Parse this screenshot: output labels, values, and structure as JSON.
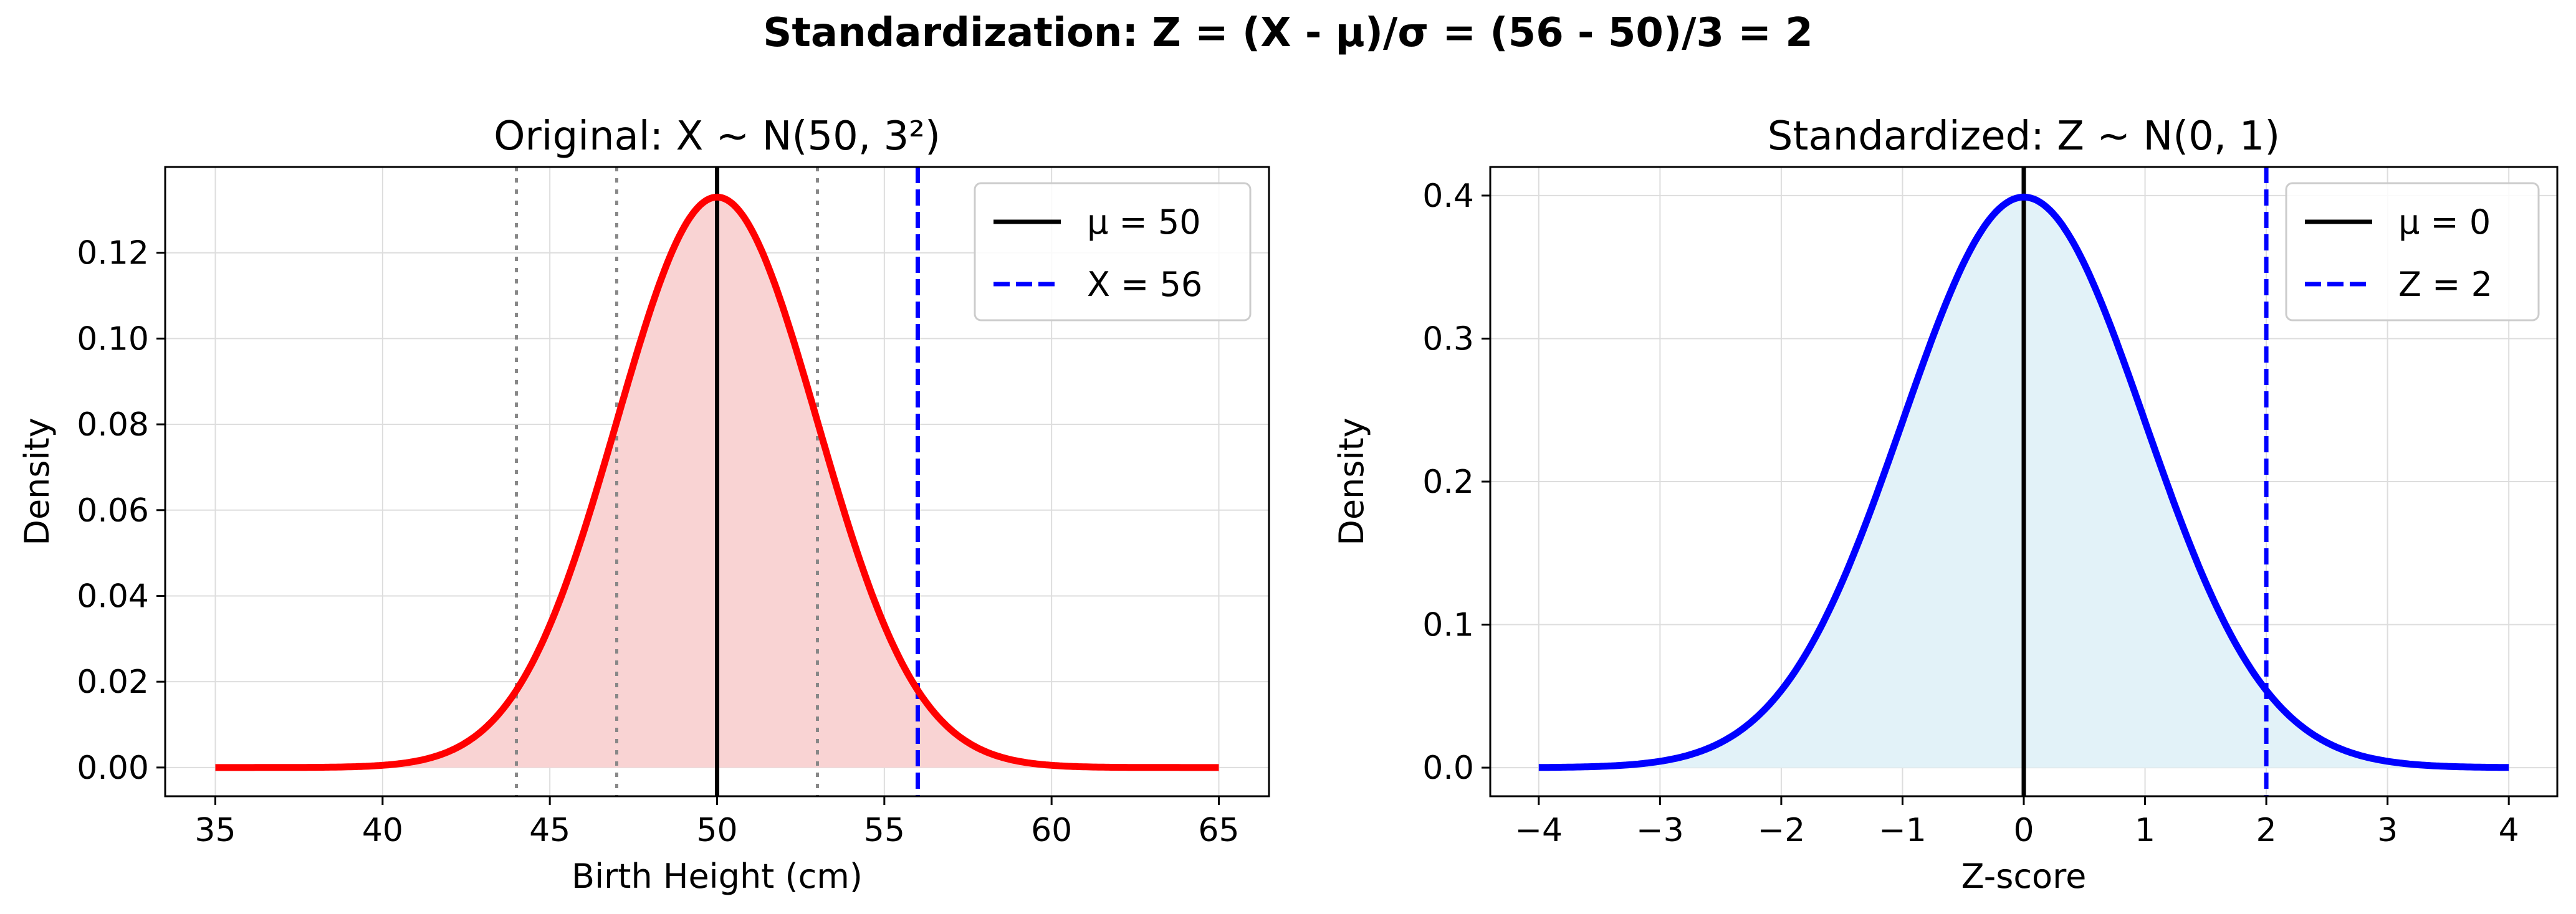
{
  "suptitle": "Standardization: Z = (X - μ)/σ = (56 - 50)/3 = 2",
  "chart_data": [
    {
      "type": "line",
      "title": "Original: X ~ N(50, 3²)",
      "xlabel": "Birth Height (cm)",
      "ylabel": "Density",
      "xlim": [
        33.5,
        66.5
      ],
      "ylim": [
        -0.0067,
        0.14
      ],
      "xticks": [
        35,
        40,
        45,
        50,
        55,
        60,
        65
      ],
      "xtick_labels": [
        "35",
        "40",
        "45",
        "50",
        "55",
        "60",
        "65"
      ],
      "yticks": [
        0,
        0.02,
        0.04,
        0.06,
        0.08,
        0.1,
        0.12
      ],
      "ytick_labels": [
        "0.00",
        "0.02",
        "0.04",
        "0.06",
        "0.08",
        "0.10",
        "0.12"
      ],
      "grid": true,
      "legend_position": "top-right",
      "curve": {
        "distribution": "normal",
        "mean": 50,
        "sd": 3,
        "x_range": [
          35,
          65
        ],
        "color": "#ff0000",
        "fill_color": "#f9d3d3"
      },
      "vlines": [
        {
          "x": 50,
          "style": "solid",
          "color": "#000000",
          "legend": "μ = 50"
        },
        {
          "x": 56,
          "style": "dashed",
          "color": "#0000ff",
          "legend": "X = 56"
        },
        {
          "x": 44,
          "style": "dotted",
          "color": "#888888"
        },
        {
          "x": 47,
          "style": "dotted",
          "color": "#888888"
        },
        {
          "x": 53,
          "style": "dotted",
          "color": "#888888"
        },
        {
          "x": 56,
          "style": "dotted",
          "color": "#888888"
        }
      ]
    },
    {
      "type": "line",
      "title": "Standardized: Z ~ N(0, 1)",
      "xlabel": "Z-score",
      "ylabel": "Density",
      "xlim": [
        -4.4,
        4.4
      ],
      "ylim": [
        -0.02,
        0.42
      ],
      "xticks": [
        -4,
        -3,
        -2,
        -1,
        0,
        1,
        2,
        3,
        4
      ],
      "xtick_labels": [
        "−4",
        "−3",
        "−2",
        "−1",
        "0",
        "1",
        "2",
        "3",
        "4"
      ],
      "yticks": [
        0,
        0.1,
        0.2,
        0.3,
        0.4
      ],
      "ytick_labels": [
        "0.0",
        "0.1",
        "0.2",
        "0.3",
        "0.4"
      ],
      "grid": true,
      "legend_position": "top-right",
      "curve": {
        "distribution": "normal",
        "mean": 0,
        "sd": 1,
        "x_range": [
          -4,
          4
        ],
        "color": "#0000ff",
        "fill_color": "#e2f2f8"
      },
      "vlines": [
        {
          "x": 0,
          "style": "solid",
          "color": "#000000",
          "legend": "μ = 0"
        },
        {
          "x": 2,
          "style": "dashed",
          "color": "#0000ff",
          "legend": "Z = 2"
        }
      ]
    }
  ]
}
